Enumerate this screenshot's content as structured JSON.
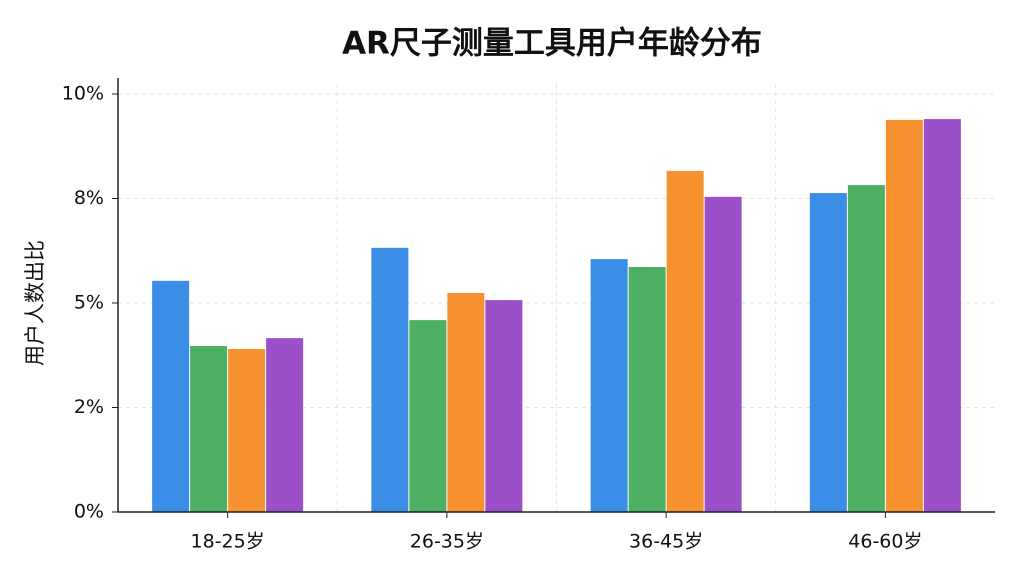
{
  "chart_data": {
    "type": "bar",
    "title": "AR尺子测量工具用户年龄分布",
    "y_label": "用户人数出比",
    "categories": [
      "18-25岁",
      "26-35岁",
      "36-45岁",
      "46-60岁"
    ],
    "series": [
      {
        "color": "#3a8ee6",
        "values": [
          5.53,
          6.32,
          6.05,
          7.63
        ]
      },
      {
        "color": "#4caf61",
        "values": [
          3.97,
          4.59,
          5.86,
          7.82
        ]
      },
      {
        "color": "#f5922f",
        "values": [
          3.9,
          5.24,
          8.16,
          9.38
        ]
      },
      {
        "color": "#9b4fc8",
        "values": [
          4.16,
          5.07,
          7.54,
          9.4
        ]
      }
    ],
    "ylim": [
      0,
      10
    ],
    "yticks": [
      {
        "value": 0,
        "label": "0%"
      },
      {
        "value": 2.5,
        "label": "2%"
      },
      {
        "value": 5,
        "label": "5%"
      },
      {
        "value": 7.5,
        "label": "8%"
      },
      {
        "value": 10,
        "label": "10%"
      }
    ],
    "grid": true
  }
}
